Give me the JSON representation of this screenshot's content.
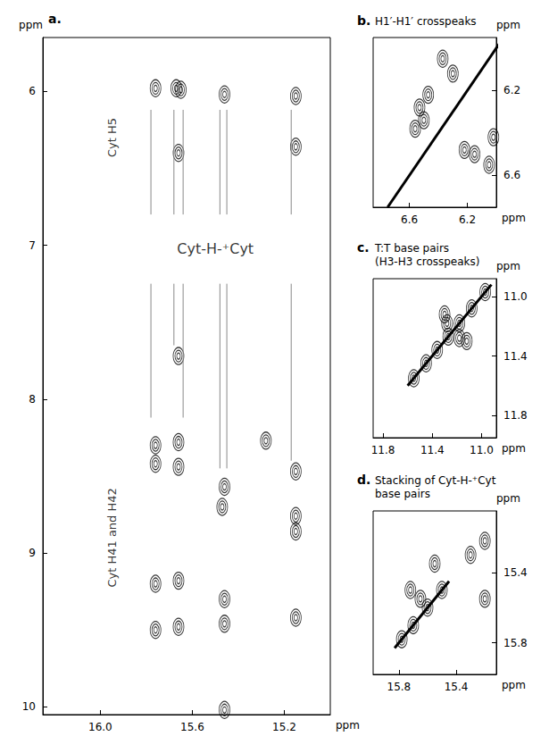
{
  "chart_data": [
    {
      "type": "scatter",
      "panel": "a.",
      "xlabel": "ppm",
      "ylabel": "ppm",
      "xlim": [
        16.25,
        15.0
      ],
      "ylim": [
        10.05,
        5.65
      ],
      "xticks": [
        {
          "value": 16,
          "label": "16.0"
        },
        15.6,
        15.2
      ],
      "yticks": [
        6,
        7,
        8,
        9,
        10
      ],
      "grid": false,
      "series": [
        {
          "type": "scatter",
          "color": "#000000",
          "values": [
            [
              15.76,
              5.98
            ],
            [
              15.67,
              5.98
            ],
            [
              15.65,
              5.99
            ],
            [
              15.46,
              6.02
            ],
            [
              15.15,
              6.03
            ],
            [
              15.66,
              6.4
            ],
            [
              15.15,
              6.36
            ],
            [
              15.76,
              8.3
            ],
            [
              15.76,
              8.42
            ],
            [
              15.66,
              8.28
            ],
            [
              15.66,
              8.44
            ],
            [
              15.46,
              8.57
            ],
            [
              15.47,
              8.7
            ],
            [
              15.15,
              8.47
            ],
            [
              15.15,
              8.76
            ],
            [
              15.15,
              8.86
            ],
            [
              15.76,
              9.2
            ],
            [
              15.76,
              9.5
            ],
            [
              15.66,
              9.18
            ],
            [
              15.66,
              9.48
            ],
            [
              15.46,
              9.3
            ],
            [
              15.46,
              9.46
            ],
            [
              15.15,
              9.42
            ],
            [
              15.66,
              7.72
            ],
            [
              15.46,
              10.02
            ],
            [
              15.28,
              8.27
            ]
          ]
        },
        {
          "type": "line",
          "color": "#888888",
          "line_style": "solid",
          "values": [
            [
              15.78,
              6.12
            ],
            [
              15.78,
              6.8
            ]
          ]
        },
        {
          "type": "line",
          "color": "#888888",
          "line_style": "solid",
          "values": [
            [
              15.78,
              7.25
            ],
            [
              15.78,
              8.12
            ]
          ]
        },
        {
          "type": "line",
          "color": "#888888",
          "line_style": "solid",
          "values": [
            [
              15.68,
              6.12
            ],
            [
              15.68,
              6.8
            ]
          ]
        },
        {
          "type": "line",
          "color": "#888888",
          "line_style": "solid",
          "values": [
            [
              15.68,
              7.25
            ],
            [
              15.68,
              7.65
            ]
          ]
        },
        {
          "type": "line",
          "color": "#888888",
          "line_style": "solid",
          "values": [
            [
              15.64,
              6.12
            ],
            [
              15.64,
              6.8
            ]
          ]
        },
        {
          "type": "line",
          "color": "#888888",
          "line_style": "solid",
          "values": [
            [
              15.64,
              7.25
            ],
            [
              15.64,
              8.12
            ]
          ]
        },
        {
          "type": "line",
          "color": "#888888",
          "line_style": "solid",
          "values": [
            [
              15.48,
              6.12
            ],
            [
              15.48,
              6.8
            ]
          ]
        },
        {
          "type": "line",
          "color": "#888888",
          "line_style": "solid",
          "values": [
            [
              15.48,
              7.25
            ],
            [
              15.48,
              8.45
            ]
          ]
        },
        {
          "type": "line",
          "color": "#888888",
          "line_style": "solid",
          "values": [
            [
              15.45,
              6.12
            ],
            [
              15.45,
              6.8
            ]
          ]
        },
        {
          "type": "line",
          "color": "#888888",
          "line_style": "solid",
          "values": [
            [
              15.45,
              7.25
            ],
            [
              15.45,
              8.45
            ]
          ]
        },
        {
          "type": "line",
          "color": "#888888",
          "line_style": "solid",
          "values": [
            [
              15.17,
              6.12
            ],
            [
              15.17,
              6.8
            ]
          ]
        },
        {
          "type": "line",
          "color": "#888888",
          "line_style": "solid",
          "values": [
            [
              15.17,
              7.25
            ],
            [
              15.17,
              8.4
            ]
          ]
        }
      ],
      "annotations": [
        {
          "text": "Cyt-H-⁺Cyt",
          "x": 15.5,
          "y": 7.02
        }
      ],
      "side_labels": [
        {
          "text": "Cyt H5",
          "x": 15.95,
          "y": 6.3
        },
        {
          "text": "Cyt H41 and H42",
          "x": 15.95,
          "y": 8.9
        }
      ]
    },
    {
      "type": "scatter",
      "panel": "b.",
      "title": [
        "H1′-H1′ crosspeaks"
      ],
      "xlabel": "ppm",
      "ylabel": "ppm",
      "xlim": [
        6.85,
        6.0
      ],
      "ylim": [
        6.75,
        5.95
      ],
      "xticks": [
        6.6,
        6.2
      ],
      "yticks": [
        6.2,
        6.6
      ],
      "grid": false,
      "series": [
        {
          "type": "line",
          "color": "#000000",
          "line_style": "bold",
          "values": [
            [
              6.75,
              6.75
            ],
            [
              5.97,
              5.97
            ]
          ]
        },
        {
          "type": "scatter",
          "color": "#000000",
          "values": [
            [
              6.53,
              6.28
            ],
            [
              6.56,
              6.38
            ],
            [
              6.5,
              6.34
            ],
            [
              6.47,
              6.22
            ],
            [
              6.37,
              6.05
            ],
            [
              6.22,
              6.48
            ],
            [
              6.15,
              6.5
            ],
            [
              6.05,
              6.55
            ],
            [
              6.02,
              6.42
            ],
            [
              6.3,
              6.12
            ]
          ]
        }
      ]
    },
    {
      "type": "scatter",
      "panel": "c.",
      "title": [
        "T:T base pairs",
        "(H3-H3 crosspeaks)"
      ],
      "xlabel": "ppm",
      "ylabel": "ppm",
      "xlim": [
        11.88,
        10.88
      ],
      "ylim": [
        11.95,
        10.88
      ],
      "xticks": [
        11.8,
        11.4,
        {
          "value": 11,
          "label": "11.0"
        }
      ],
      "yticks": [
        {
          "value": 11,
          "label": "11.0"
        },
        11.4,
        11.8
      ],
      "grid": false,
      "series": [
        {
          "type": "line",
          "color": "#000000",
          "line_style": "bold",
          "values": [
            [
              11.6,
              11.6
            ],
            [
              10.92,
              10.92
            ]
          ]
        },
        {
          "type": "scatter",
          "color": "#000000",
          "values": [
            [
              11.55,
              11.55
            ],
            [
              11.45,
              11.45
            ],
            [
              11.36,
              11.36
            ],
            [
              11.27,
              11.27
            ],
            [
              11.18,
              11.18
            ],
            [
              11.08,
              11.08
            ],
            [
              10.97,
              10.97
            ],
            [
              11.28,
              11.18
            ],
            [
              11.18,
              11.28
            ],
            [
              11.12,
              11.3
            ],
            [
              11.3,
              11.12
            ]
          ]
        }
      ]
    },
    {
      "type": "scatter",
      "panel": "d.",
      "title": [
        "Stacking of Cyt-H-⁺Cyt",
        "base pairs"
      ],
      "xlabel": "ppm",
      "ylabel": "ppm",
      "xlim": [
        15.98,
        15.12
      ],
      "ylim": [
        15.98,
        15.05
      ],
      "xticks": [
        15.8,
        15.4
      ],
      "yticks": [
        15.4,
        15.8
      ],
      "grid": false,
      "series": [
        {
          "type": "line",
          "color": "#000000",
          "line_style": "bold",
          "values": [
            [
              15.83,
              15.83
            ],
            [
              15.45,
              15.45
            ]
          ]
        },
        {
          "type": "scatter",
          "color": "#000000",
          "values": [
            [
              15.78,
              15.78
            ],
            [
              15.7,
              15.7
            ],
            [
              15.6,
              15.6
            ],
            [
              15.5,
              15.5
            ],
            [
              15.2,
              15.22
            ],
            [
              15.2,
              15.55
            ],
            [
              15.65,
              15.55
            ],
            [
              15.72,
              15.5
            ],
            [
              15.3,
              15.3
            ],
            [
              15.55,
              15.35
            ]
          ]
        }
      ]
    }
  ]
}
